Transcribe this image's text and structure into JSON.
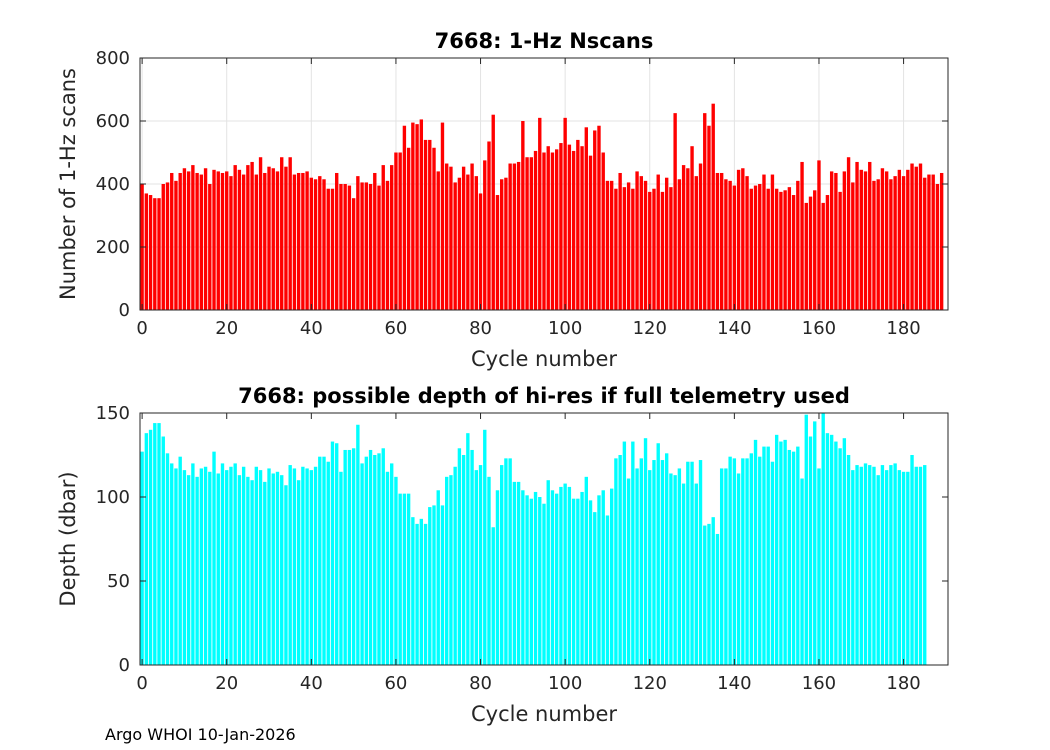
{
  "footer": "Argo WHOI 10-Jan-2026",
  "chart_data": [
    {
      "type": "bar",
      "title": "7668: 1-Hz Nscans",
      "xlabel": "Cycle number",
      "ylabel": "Number of 1-Hz scans",
      "xlim": [
        -0.5,
        190.5
      ],
      "ylim": [
        0,
        800
      ],
      "xticks": [
        0,
        20,
        40,
        60,
        80,
        100,
        120,
        140,
        160,
        180
      ],
      "yticks": [
        0,
        200,
        400,
        600,
        800
      ],
      "grid": true,
      "color": "#ff0000",
      "x_start": 0,
      "values": [
        400,
        370,
        365,
        355,
        355,
        400,
        405,
        435,
        410,
        435,
        450,
        440,
        460,
        435,
        430,
        450,
        400,
        445,
        440,
        435,
        440,
        425,
        460,
        445,
        430,
        460,
        470,
        430,
        485,
        435,
        455,
        450,
        440,
        485,
        455,
        485,
        430,
        435,
        435,
        440,
        420,
        415,
        425,
        415,
        385,
        385,
        435,
        400,
        400,
        395,
        355,
        425,
        405,
        405,
        400,
        435,
        395,
        460,
        410,
        460,
        500,
        500,
        585,
        515,
        595,
        590,
        605,
        540,
        540,
        515,
        440,
        595,
        465,
        455,
        405,
        420,
        455,
        430,
        465,
        425,
        370,
        475,
        535,
        620,
        365,
        415,
        420,
        465,
        465,
        470,
        600,
        485,
        485,
        505,
        610,
        500,
        520,
        500,
        510,
        530,
        610,
        525,
        505,
        540,
        520,
        580,
        490,
        570,
        585,
        500,
        410,
        410,
        385,
        435,
        390,
        405,
        385,
        440,
        425,
        410,
        375,
        385,
        430,
        375,
        420,
        390,
        625,
        415,
        460,
        450,
        520,
        425,
        465,
        625,
        585,
        655,
        435,
        435,
        415,
        410,
        395,
        445,
        450,
        425,
        385,
        395,
        400,
        430,
        385,
        430,
        385,
        375,
        380,
        390,
        365,
        410,
        470,
        340,
        360,
        380,
        475,
        340,
        365,
        440,
        435,
        375,
        440,
        485,
        405,
        470,
        445,
        440,
        470,
        410,
        415,
        450,
        440,
        415,
        425,
        445,
        425,
        445,
        465,
        455,
        465,
        420,
        430,
        430,
        400,
        435
      ]
    },
    {
      "type": "bar",
      "title": "7668: possible depth of hi-res if full telemetry used",
      "xlabel": "Cycle number",
      "ylabel": "Depth (dbar)",
      "xlim": [
        -0.5,
        190.5
      ],
      "ylim": [
        0,
        150
      ],
      "xticks": [
        0,
        20,
        40,
        60,
        80,
        100,
        120,
        140,
        160,
        180
      ],
      "yticks": [
        0,
        50,
        100,
        150
      ],
      "grid": false,
      "color": "#00ffff",
      "x_start": 0,
      "values": [
        127,
        138,
        140,
        144,
        144,
        136,
        126,
        120,
        117,
        124,
        116,
        113,
        120,
        112,
        117,
        118,
        115,
        127,
        114,
        120,
        116,
        118,
        120,
        113,
        118,
        112,
        110,
        118,
        116,
        109,
        117,
        114,
        115,
        113,
        107,
        119,
        117,
        110,
        118,
        117,
        116,
        118,
        124,
        124,
        121,
        133,
        132,
        115,
        128,
        128,
        129,
        143,
        120,
        124,
        128,
        125,
        126,
        129,
        115,
        120,
        112,
        102,
        102,
        102,
        88,
        84,
        87,
        84,
        94,
        95,
        104,
        95,
        112,
        113,
        118,
        129,
        125,
        138,
        128,
        116,
        119,
        140,
        112,
        82,
        104,
        119,
        123,
        123,
        109,
        109,
        104,
        101,
        99,
        103,
        100,
        96,
        110,
        104,
        102,
        106,
        108,
        106,
        99,
        99,
        103,
        112,
        98,
        91,
        101,
        104,
        89,
        105,
        123,
        125,
        133,
        111,
        133,
        117,
        123,
        135,
        116,
        122,
        132,
        122,
        126,
        114,
        113,
        117,
        108,
        121,
        121,
        108,
        122,
        83,
        84,
        88,
        78,
        117,
        117,
        124,
        123,
        114,
        123,
        123,
        126,
        134,
        124,
        130,
        130,
        121,
        137,
        133,
        134,
        128,
        127,
        130,
        111,
        149,
        136,
        145,
        117,
        150,
        138,
        137,
        133,
        129,
        135,
        125,
        116,
        119,
        118,
        120,
        119,
        118,
        113,
        119,
        116,
        119,
        120,
        116,
        115,
        115,
        125,
        118,
        118,
        119
      ]
    }
  ]
}
